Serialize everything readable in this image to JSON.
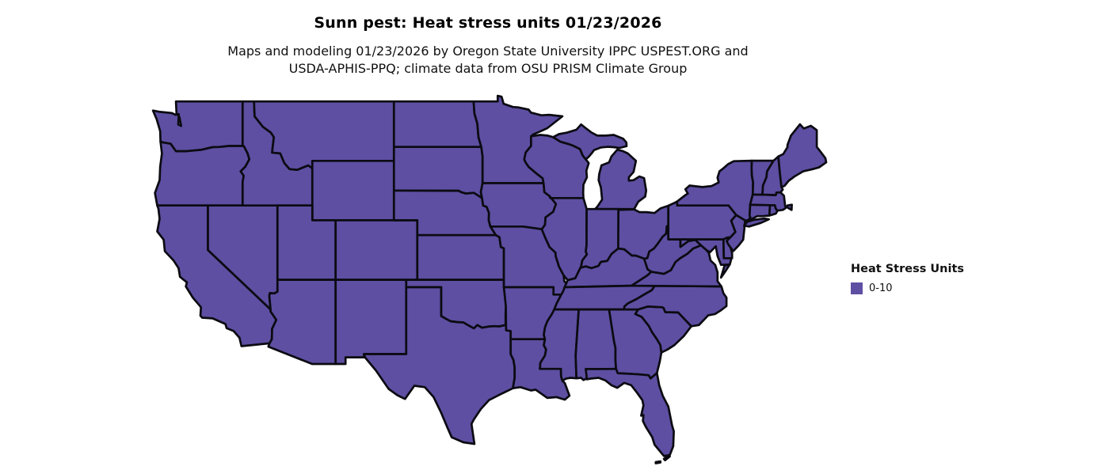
{
  "title": "Sunn pest: Heat stress units 01/23/2026",
  "subtitle": {
    "line1": "Maps and modeling 01/23/2026 by Oregon State University IPPC USPEST.ORG and",
    "line2": "USDA-APHIS-PPQ; climate data from OSU PRISM Climate Group"
  },
  "legend": {
    "title": "Heat Stress Units",
    "items": [
      {
        "label": "0-10",
        "color": "#5e4fa2"
      }
    ]
  },
  "map": {
    "region": "Contiguous United States",
    "fill_color": "#5e4fa2",
    "border_color": "#0b0b12",
    "background_color": "#ffffff"
  }
}
